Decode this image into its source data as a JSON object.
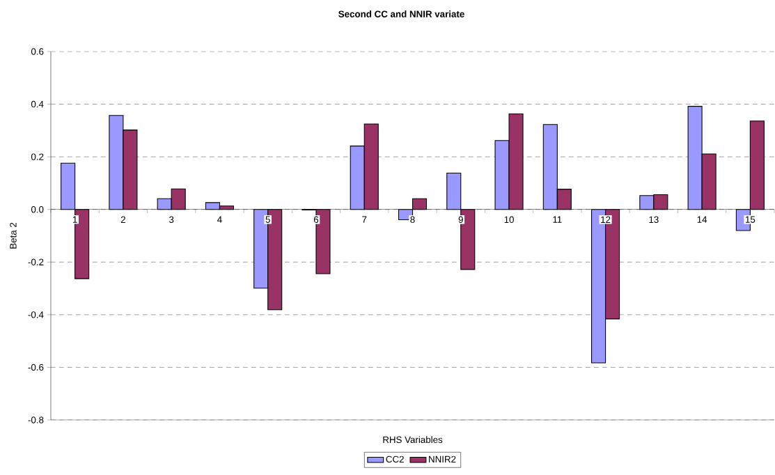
{
  "chart_data": {
    "type": "bar",
    "title": "Second CC and NNIR variate",
    "xlabel": "RHS Variables",
    "ylabel": "Beta 2",
    "categories": [
      "1",
      "2",
      "3",
      "4",
      "5",
      "6",
      "7",
      "8",
      "9",
      "10",
      "11",
      "12",
      "13",
      "14",
      "15"
    ],
    "series": [
      {
        "name": "CC2",
        "color": "#9999ff",
        "values": [
          0.176,
          0.357,
          0.041,
          0.026,
          -0.299,
          -0.002,
          0.241,
          -0.039,
          0.138,
          0.262,
          0.323,
          -0.583,
          0.053,
          0.392,
          -0.08
        ]
      },
      {
        "name": "NNIR2",
        "color": "#993366",
        "values": [
          -0.263,
          0.302,
          0.078,
          0.013,
          -0.381,
          -0.244,
          0.325,
          0.041,
          -0.228,
          0.363,
          0.077,
          -0.416,
          0.056,
          0.211,
          0.336
        ]
      }
    ],
    "ylim": [
      -0.8,
      0.6
    ],
    "yticks": [
      -0.8,
      -0.6,
      -0.4,
      -0.2,
      {
        "value": 0,
        "label": "0.0"
      },
      0.2,
      0.4,
      0.6
    ],
    "grid": "y",
    "legend": "bottom"
  }
}
